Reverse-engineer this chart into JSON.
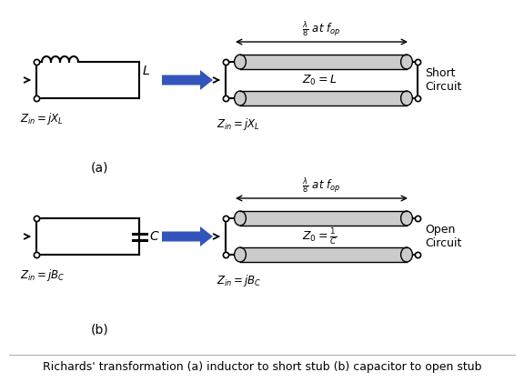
{
  "bg_color": "#ffffff",
  "arrow_color": "#3355bb",
  "stub_fill": "#cccccc",
  "stub_edge": "#000000",
  "line_color": "#000000",
  "caption": "Richards' transformation (a) inductor to short stub (b) capacitor to open stub",
  "caption_fontsize": 9.0,
  "label_a": "(a)",
  "label_b": "(b)",
  "fig_w": 5.76,
  "fig_h": 4.2,
  "dpi": 100
}
